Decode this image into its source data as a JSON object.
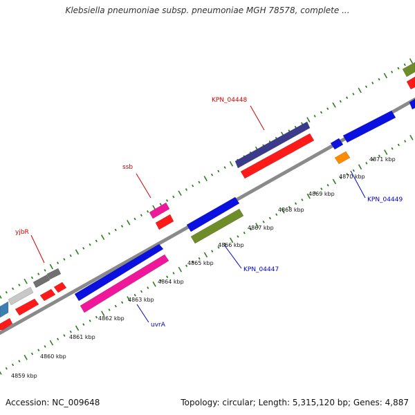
{
  "title": "Klebsiella pneumoniae subsp. pneumoniae MGH 78578, complete ...",
  "footer": {
    "accession": "Accession: NC_009648",
    "summary": "Topology: circular; Length: 5,315,120 bp; Genes: 4,887"
  },
  "colors": {
    "backbone": "#8a8a8a",
    "ticks": "#2e7d1f",
    "label_red": "#cc0000",
    "label_blue": "#0000cc"
  },
  "kbp_labels": [
    "4859 kbp",
    "4860 kbp",
    "4861 kbp",
    "4862 kbp",
    "4863 kbp",
    "4864 kbp",
    "4865 kbp",
    "4866 kbp",
    "4867 kbp",
    "4868 kbp",
    "4869 kbp",
    "4870 kbp",
    "4871 kbp"
  ],
  "gene_labels": [
    {
      "id": "yjbR",
      "text": "yjbR",
      "color": "#cc0000"
    },
    {
      "id": "ssb",
      "text": "ssb",
      "color": "#cc0000"
    },
    {
      "id": "KPN_04448",
      "text": "KPN_04448",
      "color": "#cc0000"
    },
    {
      "id": "uvrA",
      "text": "uvrA",
      "color": "#0000cc"
    },
    {
      "id": "KPN_04447",
      "text": "KPN_04447",
      "color": "#0000cc"
    },
    {
      "id": "KPN_04449",
      "text": "KPN_04449",
      "color": "#0000cc"
    }
  ],
  "genes": [
    {
      "name": "gene-steelblue",
      "color": "#3d7fb0"
    },
    {
      "name": "gene-lightgray",
      "color": "#c8c8c8"
    },
    {
      "name": "gene-darkgray-1",
      "color": "#707070"
    },
    {
      "name": "gene-darkgray-2",
      "color": "#707070"
    },
    {
      "name": "gene-red-1",
      "color": "#ff1a1a"
    },
    {
      "name": "gene-red-2",
      "color": "#ff1a1a"
    },
    {
      "name": "gene-red-3",
      "color": "#ff1a1a"
    },
    {
      "name": "gene-red-4",
      "color": "#ff1a1a"
    },
    {
      "name": "gene-uvrA",
      "color": "#0a10e0"
    },
    {
      "name": "gene-pink-large",
      "color": "#f0189a"
    },
    {
      "name": "gene-ssb",
      "color": "#f0189a"
    },
    {
      "name": "gene-red-ssb",
      "color": "#ff1a1a"
    },
    {
      "name": "gene-KPN_04447",
      "color": "#0a10e0"
    },
    {
      "name": "gene-olive",
      "color": "#6e8c28"
    },
    {
      "name": "gene-KPN_04448",
      "color": "#3c3a8a"
    },
    {
      "name": "gene-red-large",
      "color": "#ff1a1a"
    },
    {
      "name": "gene-blue-small",
      "color": "#0a10e0"
    },
    {
      "name": "gene-orange",
      "color": "#ff8c00"
    },
    {
      "name": "gene-blue-right",
      "color": "#0a10e0"
    },
    {
      "name": "gene-olive-edge",
      "color": "#6e8c28"
    },
    {
      "name": "gene-red-edge",
      "color": "#ff1a1a"
    },
    {
      "name": "gene-blue-edge",
      "color": "#0a10e0"
    }
  ]
}
